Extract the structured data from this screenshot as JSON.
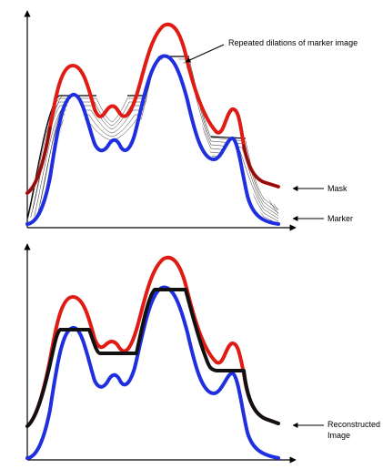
{
  "labels": {
    "dilations": "Repeated dilations of marker image",
    "mask": "Mask",
    "marker": "Marker",
    "reconstructed_line1": "Reconstructed",
    "reconstructed_line2": "Image"
  },
  "colors": {
    "mask": "#e01b14",
    "marker": "#1f2fe0",
    "reconstructed": "#111111",
    "mask_top_dark": "#8a1010",
    "hatch": "#333333",
    "axis": "#000000"
  }
}
